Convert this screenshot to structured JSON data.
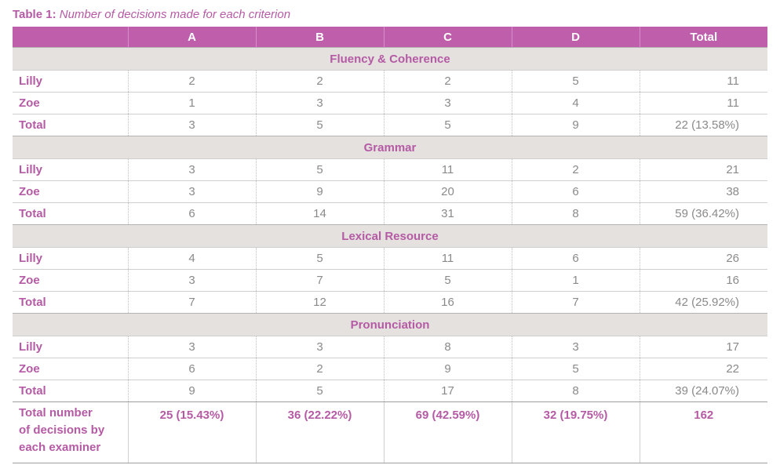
{
  "caption": {
    "label": "Table 1:",
    "text": "Number of decisions made for each criterion"
  },
  "headers": [
    "",
    "A",
    "B",
    "C",
    "D",
    "Total"
  ],
  "sections": [
    {
      "title": "Fluency & Coherence",
      "rows": [
        {
          "label": "Lilly",
          "values": [
            "2",
            "2",
            "2",
            "5"
          ],
          "total": "11"
        },
        {
          "label": "Zoe",
          "values": [
            "1",
            "3",
            "3",
            "4"
          ],
          "total": "11"
        },
        {
          "label": "Total",
          "values": [
            "3",
            "5",
            "5",
            "9"
          ],
          "total": "22 (13.58%)"
        }
      ]
    },
    {
      "title": "Grammar",
      "rows": [
        {
          "label": "Lilly",
          "values": [
            "3",
            "5",
            "11",
            "2"
          ],
          "total": "21"
        },
        {
          "label": "Zoe",
          "values": [
            "3",
            "9",
            "20",
            "6"
          ],
          "total": "38"
        },
        {
          "label": "Total",
          "values": [
            "6",
            "14",
            "31",
            "8"
          ],
          "total": "59 (36.42%)"
        }
      ]
    },
    {
      "title": "Lexical Resource",
      "rows": [
        {
          "label": "Lilly",
          "values": [
            "4",
            "5",
            "11",
            "6"
          ],
          "total": "26"
        },
        {
          "label": "Zoe",
          "values": [
            "3",
            "7",
            "5",
            "1"
          ],
          "total": "16"
        },
        {
          "label": "Total",
          "values": [
            "7",
            "12",
            "16",
            "7"
          ],
          "total": "42 (25.92%)"
        }
      ]
    },
    {
      "title": "Pronunciation",
      "rows": [
        {
          "label": "Lilly",
          "values": [
            "3",
            "3",
            "8",
            "3"
          ],
          "total": "17"
        },
        {
          "label": "Zoe",
          "values": [
            "6",
            "2",
            "9",
            "5"
          ],
          "total": "22"
        },
        {
          "label": "Total",
          "values": [
            "9",
            "5",
            "17",
            "8"
          ],
          "total": "39 (24.07%)"
        }
      ]
    }
  ],
  "final": {
    "label_lines": [
      "Total number",
      "of decisions by",
      "each examiner"
    ],
    "values": [
      "25 (15.43%)",
      "36 (22.22%)",
      "69 (42.59%)",
      "32 (19.75%)"
    ],
    "total": "162"
  }
}
